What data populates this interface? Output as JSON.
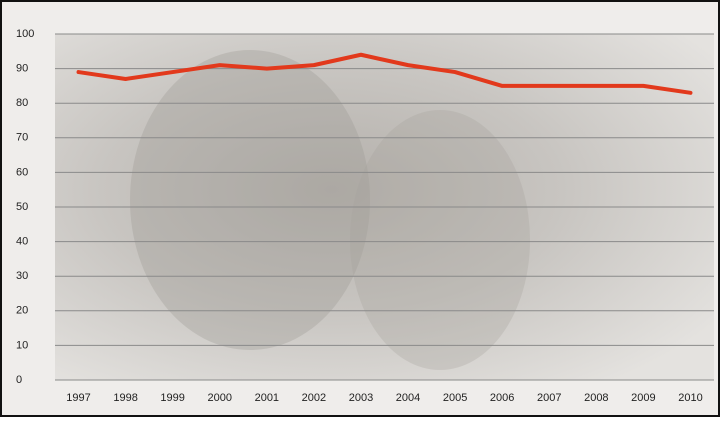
{
  "chart_data": {
    "type": "line",
    "categories": [
      "1997",
      "1998",
      "1999",
      "2000",
      "2001",
      "2002",
      "2003",
      "2004",
      "2005",
      "2006",
      "2007",
      "2008",
      "2009",
      "2010"
    ],
    "series": [
      {
        "color": "#e2391c",
        "values": [
          89,
          87,
          89,
          91,
          90,
          91,
          94,
          91,
          89,
          85,
          85,
          85,
          85,
          83
        ]
      }
    ],
    "ylim": [
      0,
      100
    ],
    "yticks": [
      0,
      10,
      20,
      30,
      40,
      50,
      60,
      70,
      80,
      90,
      100
    ],
    "grid": true
  }
}
